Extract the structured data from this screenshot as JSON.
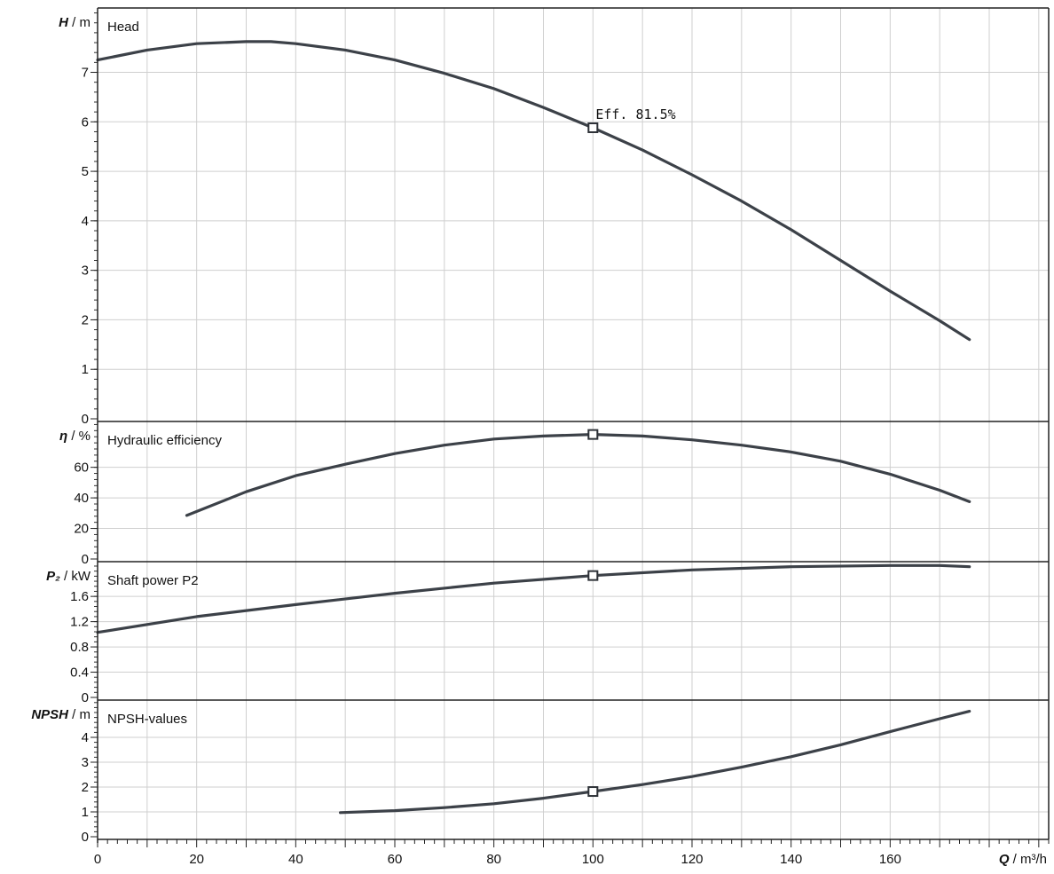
{
  "chart_data": {
    "type": "line",
    "x_axis": {
      "label": "Q / m³/h",
      "range": [
        0,
        192
      ],
      "ticks": [
        0,
        20,
        40,
        60,
        80,
        100,
        120,
        140,
        160
      ],
      "tick_labels": [
        "0",
        "20",
        "40",
        "60",
        "80",
        "100",
        "120",
        "140",
        "160"
      ]
    },
    "grid": true,
    "duty_point": {
      "q": 100,
      "annotation": "Eff.  81.5%"
    },
    "panels": [
      {
        "key": "head",
        "title": "Head",
        "ylabel_symbol": "H",
        "ylabel_unit": " / m",
        "ylim": [
          0,
          8.3
        ],
        "ticks": [
          0,
          1,
          2,
          3,
          4,
          5,
          6,
          7
        ],
        "tick_labels": [
          "0",
          "1",
          "2",
          "3",
          "4",
          "5",
          "6",
          "7"
        ],
        "series": [
          {
            "x": [
              0,
              10,
              20,
              30,
              35,
              40,
              50,
              60,
              70,
              80,
              90,
              100,
              110,
              120,
              130,
              140,
              150,
              160,
              170,
              176
            ],
            "y": [
              7.25,
              7.45,
              7.58,
              7.62,
              7.62,
              7.58,
              7.45,
              7.25,
              6.98,
              6.67,
              6.29,
              5.88,
              5.43,
              4.93,
              4.4,
              3.82,
              3.2,
              2.58,
              1.98,
              1.6
            ]
          }
        ],
        "marker": {
          "x": 100,
          "y": 5.88
        }
      },
      {
        "key": "efficiency",
        "title": "Hydraulic efficiency",
        "ylabel_symbol": "η",
        "ylabel_unit": " / %",
        "ylim": [
          0,
          90
        ],
        "ticks": [
          0,
          20,
          40,
          60
        ],
        "tick_labels": [
          "0",
          "20",
          "40",
          "60"
        ],
        "series": [
          {
            "x": [
              18,
              30,
              40,
              50,
              60,
              70,
              80,
              90,
              100,
              110,
              120,
              130,
              140,
              150,
              160,
              170,
              176
            ],
            "y": [
              28.5,
              44,
              54.5,
              62,
              69,
              74.5,
              78.5,
              80.5,
              81.5,
              80.5,
              78,
              74.5,
              70,
              64,
              55.5,
              45,
              37.5
            ]
          }
        ],
        "marker": {
          "x": 100,
          "y": 81.5
        }
      },
      {
        "key": "power",
        "title": "Shaft power P2",
        "ylabel_symbol": "P₂",
        "ylabel_unit": " / kW",
        "ylim": [
          0,
          2.15
        ],
        "ticks": [
          0,
          0.4,
          0.8,
          1.2,
          1.6
        ],
        "tick_labels": [
          "0",
          "0.4",
          "0.8",
          "1.2",
          "1.6"
        ],
        "series": [
          {
            "x": [
              0,
              20,
              40,
              60,
              80,
              100,
              120,
              140,
              160,
              170,
              176
            ],
            "y": [
              1.03,
              1.28,
              1.47,
              1.65,
              1.81,
              1.93,
              2.02,
              2.07,
              2.09,
              2.09,
              2.07
            ]
          }
        ],
        "marker": {
          "x": 100,
          "y": 1.93
        }
      },
      {
        "key": "npsh",
        "title": "NPSH-values",
        "ylabel_symbol": "NPSH",
        "ylabel_unit": " / m",
        "ylim": [
          0,
          5.5
        ],
        "ticks": [
          0,
          1,
          2,
          3,
          4
        ],
        "tick_labels": [
          "0",
          "1",
          "2",
          "3",
          "4"
        ],
        "series": [
          {
            "x": [
              49,
              60,
              70,
              80,
              90,
              100,
              110,
              120,
              130,
              140,
              150,
              160,
              170,
              176
            ],
            "y": [
              0.97,
              1.05,
              1.17,
              1.33,
              1.55,
              1.82,
              2.1,
              2.42,
              2.8,
              3.22,
              3.7,
              4.23,
              4.75,
              5.05
            ]
          }
        ],
        "marker": {
          "x": 100,
          "y": 1.82
        }
      }
    ]
  }
}
